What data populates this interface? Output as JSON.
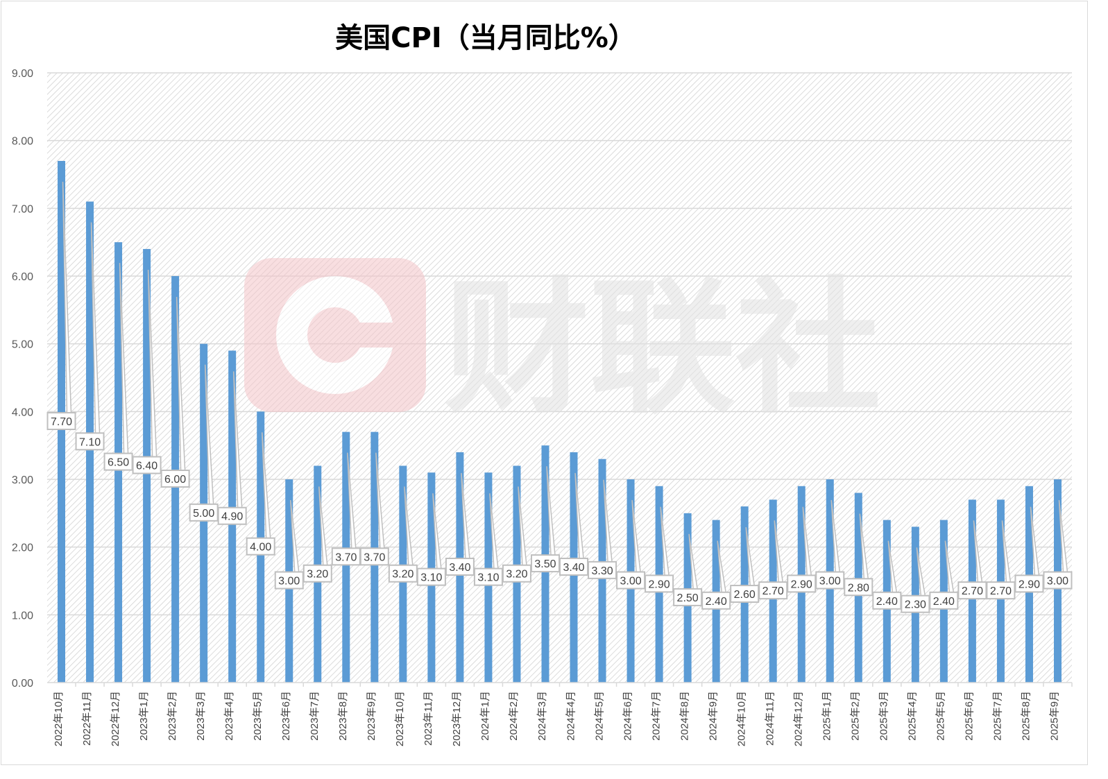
{
  "chart_data": {
    "type": "bar",
    "title": "美国CPI（当月同比%）",
    "xlabel": "",
    "ylabel": "",
    "ylim": [
      0,
      9
    ],
    "yticks": [
      "0.00",
      "1.00",
      "2.00",
      "3.00",
      "4.00",
      "5.00",
      "6.00",
      "7.00",
      "8.00",
      "9.00"
    ],
    "grid": true,
    "legend": "none",
    "bar_color": "#5b9bd5",
    "categories": [
      "2022年10月",
      "2022年11月",
      "2022年12月",
      "2023年1月",
      "2023年2月",
      "2023年3月",
      "2023年4月",
      "2023年5月",
      "2023年6月",
      "2023年7月",
      "2023年8月",
      "2023年9月",
      "2023年10月",
      "2023年11月",
      "2023年12月",
      "2024年1月",
      "2024年2月",
      "2024年3月",
      "2024年4月",
      "2024年5月",
      "2024年6月",
      "2024年7月",
      "2024年8月",
      "2024年9月",
      "2024年10月",
      "2024年11月",
      "2024年12月",
      "2025年1月",
      "2025年2月",
      "2025年3月",
      "2025年4月",
      "2025年5月",
      "2025年6月",
      "2025年7月",
      "2025年8月",
      "2025年9月"
    ],
    "values": [
      7.7,
      7.1,
      6.5,
      6.4,
      6.0,
      5.0,
      4.9,
      4.0,
      3.0,
      3.2,
      3.7,
      3.7,
      3.2,
      3.1,
      3.4,
      3.1,
      3.2,
      3.5,
      3.4,
      3.3,
      3.0,
      2.9,
      2.5,
      2.4,
      2.6,
      2.7,
      2.9,
      3.0,
      2.8,
      2.4,
      2.3,
      2.4,
      2.7,
      2.7,
      2.9,
      3.0
    ],
    "data_labels": [
      "7.70",
      "7.10",
      "6.50",
      "6.40",
      "6.00",
      "5.00",
      "4.90",
      "4.00",
      "3.00",
      "3.20",
      "3.70",
      "3.70",
      "3.20",
      "3.10",
      "3.40",
      "3.10",
      "3.20",
      "3.50",
      "3.40",
      "3.30",
      "3.00",
      "2.90",
      "2.50",
      "2.40",
      "2.60",
      "2.70",
      "2.90",
      "3.00",
      "2.80",
      "2.40",
      "2.30",
      "2.40",
      "2.70",
      "2.70",
      "2.90",
      "3.00"
    ]
  },
  "watermark": {
    "text": "财联社",
    "color": "#e8a0a8"
  }
}
